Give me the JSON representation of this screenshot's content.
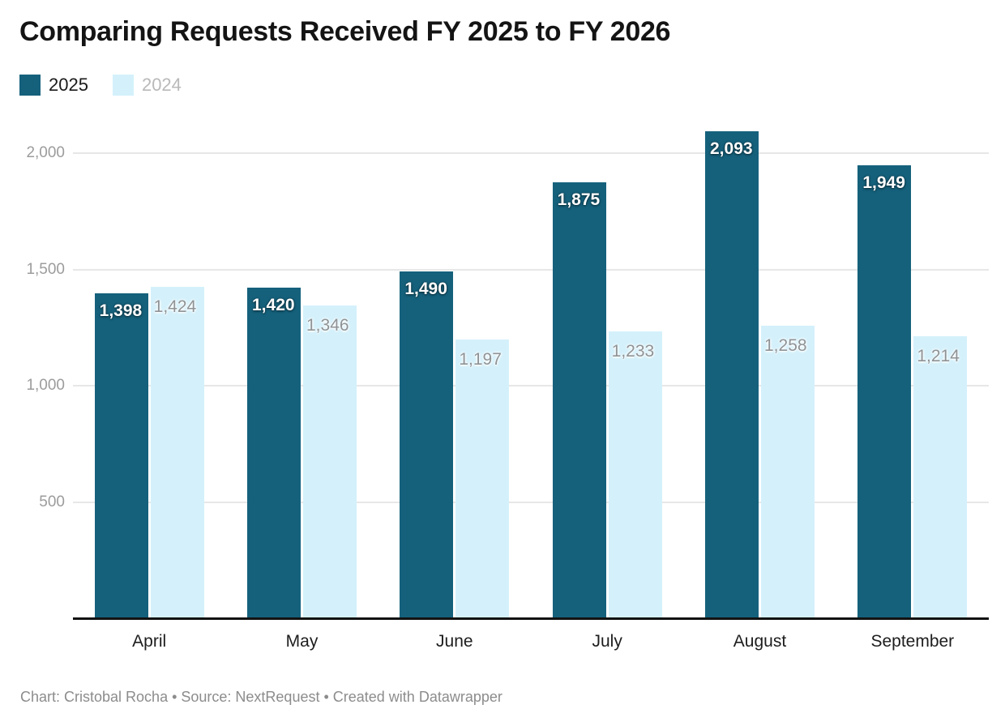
{
  "header": {
    "title": "Comparing Requests Received FY 2025 to FY 2026"
  },
  "legend": {
    "items": [
      {
        "label": "2025",
        "swatch_color": "#15617c",
        "label_color": "#1a1a1a"
      },
      {
        "label": "2024",
        "swatch_color": "#d4f1fb",
        "label_color": "#b9b9b9"
      }
    ]
  },
  "footer": {
    "text": "Chart: Cristobal Rocha • Source: NextRequest • Created with Datawrapper"
  },
  "chart_data": {
    "type": "bar",
    "title": "Comparing Requests Received FY 2025 to FY 2026",
    "categories": [
      "April",
      "May",
      "June",
      "July",
      "August",
      "September"
    ],
    "series": [
      {
        "name": "2025",
        "color": "#15617c",
        "label_style": "dark",
        "values": [
          1398,
          1420,
          1490,
          1875,
          2093,
          1949
        ]
      },
      {
        "name": "2024",
        "color": "#d4f1fb",
        "label_style": "light",
        "values": [
          1424,
          1346,
          1197,
          1233,
          1258,
          1214
        ]
      }
    ],
    "xlabel": "",
    "ylabel": "",
    "ylim": [
      0,
      2200
    ],
    "yticks": [
      500,
      1000,
      1500,
      2000
    ],
    "ytick_labels": [
      "500",
      "1,000",
      "1,500",
      "2,000"
    ],
    "grid": "horizontal",
    "legend_position": "top-left",
    "value_labels": "inside-top",
    "colors": {
      "accent_dark": "#15617c",
      "accent_light": "#d4f1fb",
      "grid": "#e7e7e7",
      "axis": "#121212"
    }
  }
}
